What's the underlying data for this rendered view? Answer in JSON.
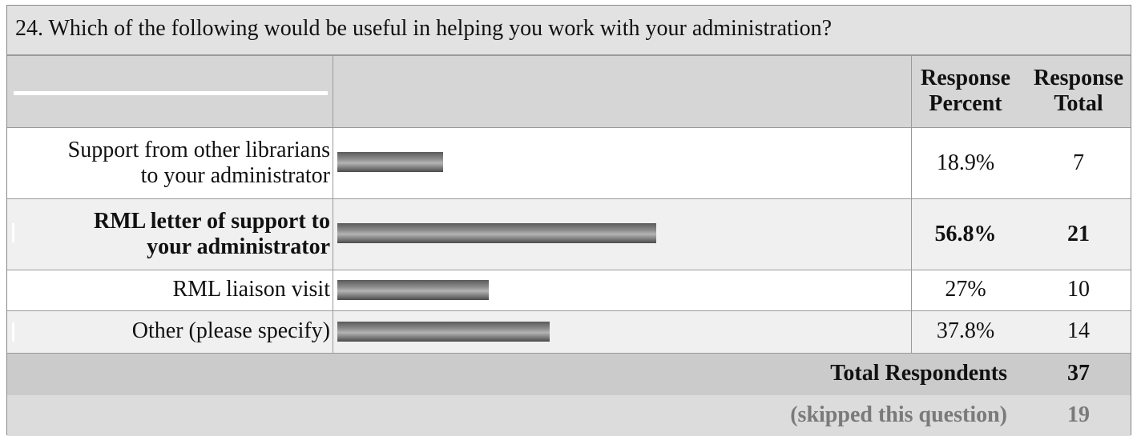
{
  "question": "24. Which of the following would be useful in helping you work with your administration?",
  "headers": {
    "percent_line1": "Response",
    "percent_line2": "Percent",
    "total_line1": "Response",
    "total_line2": "Total"
  },
  "chart_data": {
    "type": "bar",
    "title": "24. Which of the following would be useful in helping you work with your administration?",
    "categories": [
      "Support from other librarians to your administrator",
      "RML letter of support to your administrator",
      "RML liaison visit",
      "Other (please specify)"
    ],
    "values": [
      18.9,
      56.8,
      27,
      37.8
    ],
    "totals": [
      7,
      21,
      10,
      14
    ],
    "value_labels": [
      "18.9%",
      "56.8%",
      "27%",
      "37.8%"
    ],
    "ylim": [
      0,
      100
    ]
  },
  "rows": [
    {
      "line1": "Support from other librarians",
      "line2": "to your administrator",
      "percent": "18.9%",
      "total": "7"
    },
    {
      "line1": "RML letter of support to",
      "line2": "your administrator",
      "percent": "56.8%",
      "total": "21"
    },
    {
      "line1": "RML liaison visit",
      "line2": "",
      "percent": "27%",
      "total": "10"
    },
    {
      "line1": "Other (please specify)",
      "line2": "",
      "percent": "37.8%",
      "total": "14"
    }
  ],
  "footer": {
    "total_label": "Total Respondents",
    "total_value": "37",
    "skipped_label": "(skipped this question)",
    "skipped_value": "19"
  }
}
